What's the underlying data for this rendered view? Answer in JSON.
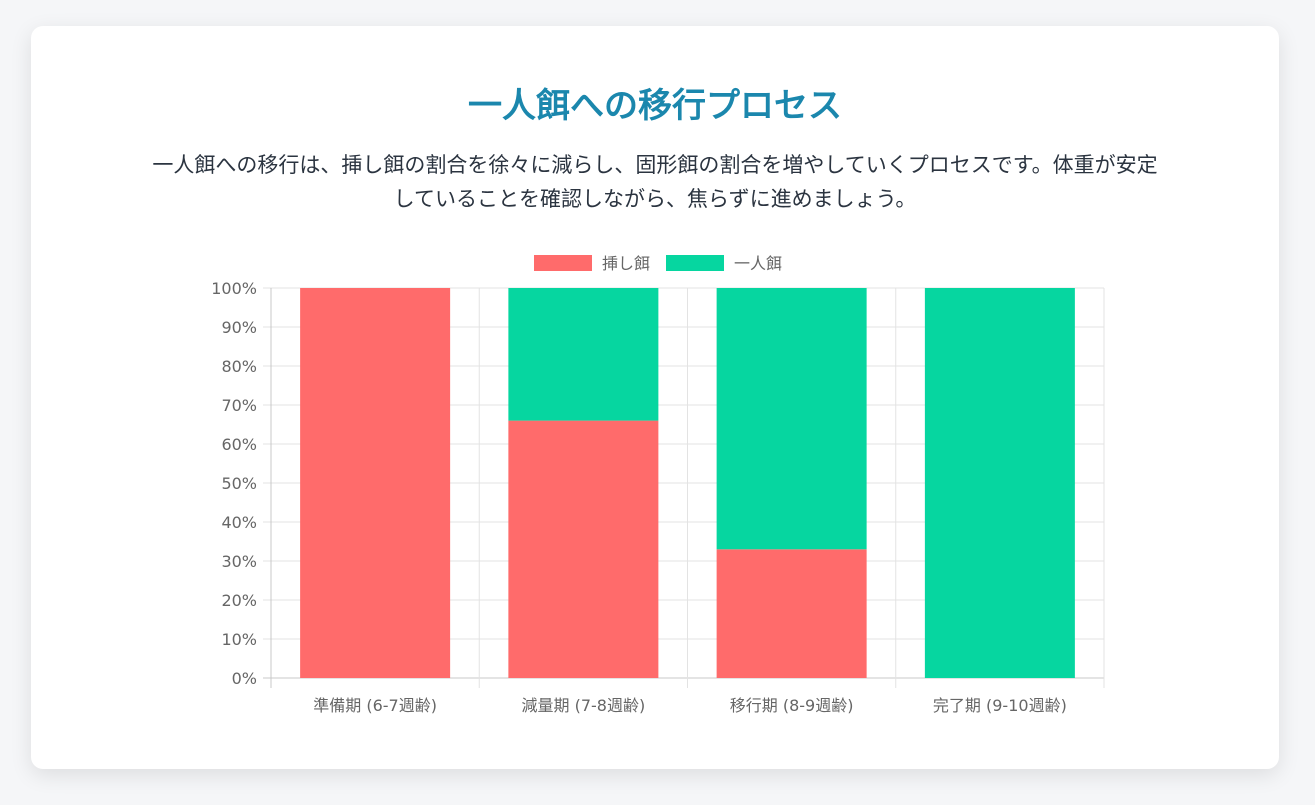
{
  "page": {
    "title": "一人餌への移行プロセス",
    "description": "一人餌への移行は、挿し餌の割合を徐々に減らし、固形餌の割合を増やしていくプロセスです。体重が安定していることを確認しながら、焦らずに進めましょう。"
  },
  "chart_data": {
    "type": "bar",
    "stacked": true,
    "categories": [
      "準備期 (6-7週齢)",
      "減量期 (7-8週齢)",
      "移行期 (8-9週齢)",
      "完了期 (9-10週齢)"
    ],
    "series": [
      {
        "name": "挿し餌",
        "color": "#ff6b6b",
        "values": [
          100,
          66,
          33,
          0
        ]
      },
      {
        "name": "一人餌",
        "color": "#06d6a0",
        "values": [
          0,
          34,
          67,
          100
        ]
      }
    ],
    "ylim": [
      0,
      100
    ],
    "yticks": [
      0,
      10,
      20,
      30,
      40,
      50,
      60,
      70,
      80,
      90,
      100
    ],
    "ytick_suffix": "%",
    "legend_position": "top",
    "grid": true
  }
}
